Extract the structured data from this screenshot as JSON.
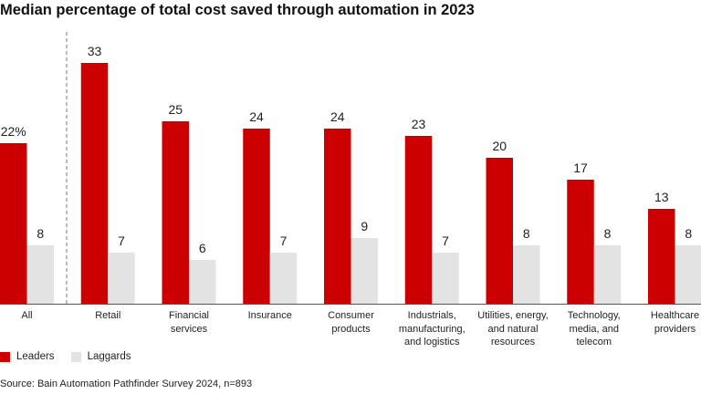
{
  "chart_data": {
    "type": "bar",
    "title": "Median percentage of total cost saved through automation in 2023",
    "categories": [
      "All",
      "Retail",
      "Financial\nservices",
      "Insurance",
      "Consumer\nproducts",
      "Industrials,\nmanufacturing,\nand logistics",
      "Utilities, energy,\nand natural\nresources",
      "Technology,\nmedia, and\ntelecom",
      "Healthcare\nproviders"
    ],
    "series": [
      {
        "name": "Leaders",
        "color": "#cc0000",
        "values": [
          22,
          33,
          25,
          24,
          24,
          23,
          20,
          17,
          13
        ],
        "labels": [
          "22%",
          "33",
          "25",
          "24",
          "24",
          "23",
          "20",
          "17",
          "13"
        ]
      },
      {
        "name": "Laggards",
        "color": "#e3e3e3",
        "values": [
          8,
          7,
          6,
          7,
          9,
          7,
          8,
          8,
          8
        ],
        "labels": [
          "8",
          "7",
          "6",
          "7",
          "9",
          "7",
          "8",
          "8",
          "8"
        ]
      }
    ],
    "ylim": [
      0,
      37
    ],
    "grid": false,
    "legend_position": "bottom-left",
    "source": "Source: Bain Automation Pathfinder Survey 2024, n=893"
  }
}
